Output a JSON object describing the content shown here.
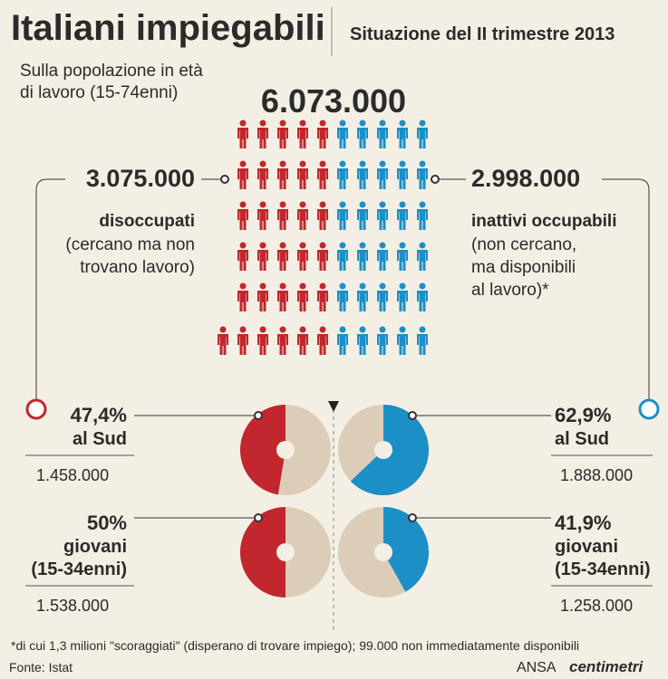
{
  "header": {
    "title": "Italiani impiegabili",
    "subtitle": "Situazione del II trimestre 2013"
  },
  "population_note": [
    "Sulla popolazione in età",
    "di lavoro (15-74enni)"
  ],
  "total": "6.073.000",
  "groups": [
    {
      "value": "3.075.000",
      "label": "disoccupati",
      "description": [
        "(cercano ma non",
        "trovano lavoro)"
      ],
      "color": "#c1272d",
      "stats": [
        {
          "percent": 47.4,
          "percent_label": "47,4%",
          "group": [
            "al Sud"
          ],
          "count": "1.458.000"
        },
        {
          "percent": 50,
          "percent_label": "50%",
          "group": [
            "giovani",
            "(15-34enni)"
          ],
          "count": "1.538.000"
        }
      ]
    },
    {
      "value": "2.998.000",
      "label": "inattivi occupabili",
      "description": [
        "(non cercano,",
        "ma disponibili",
        "al lavoro)*"
      ],
      "color": "#1b8fc6",
      "stats": [
        {
          "percent": 62.9,
          "percent_label": "62,9%",
          "group": [
            "al Sud"
          ],
          "count": "1.888.000"
        },
        {
          "percent": 41.9,
          "percent_label": "41,9%",
          "group": [
            "giovani",
            "(15-34enni)"
          ],
          "count": "1.258.000"
        }
      ]
    }
  ],
  "footnote": "*di cui 1,3 milioni \"scoraggiati\" (disperano di trovare impiego); 99.000 non immediatamente disponibili",
  "source": "Fonte: Istat",
  "credit": {
    "agency": "ANSA",
    "brand": "centimetri"
  }
}
